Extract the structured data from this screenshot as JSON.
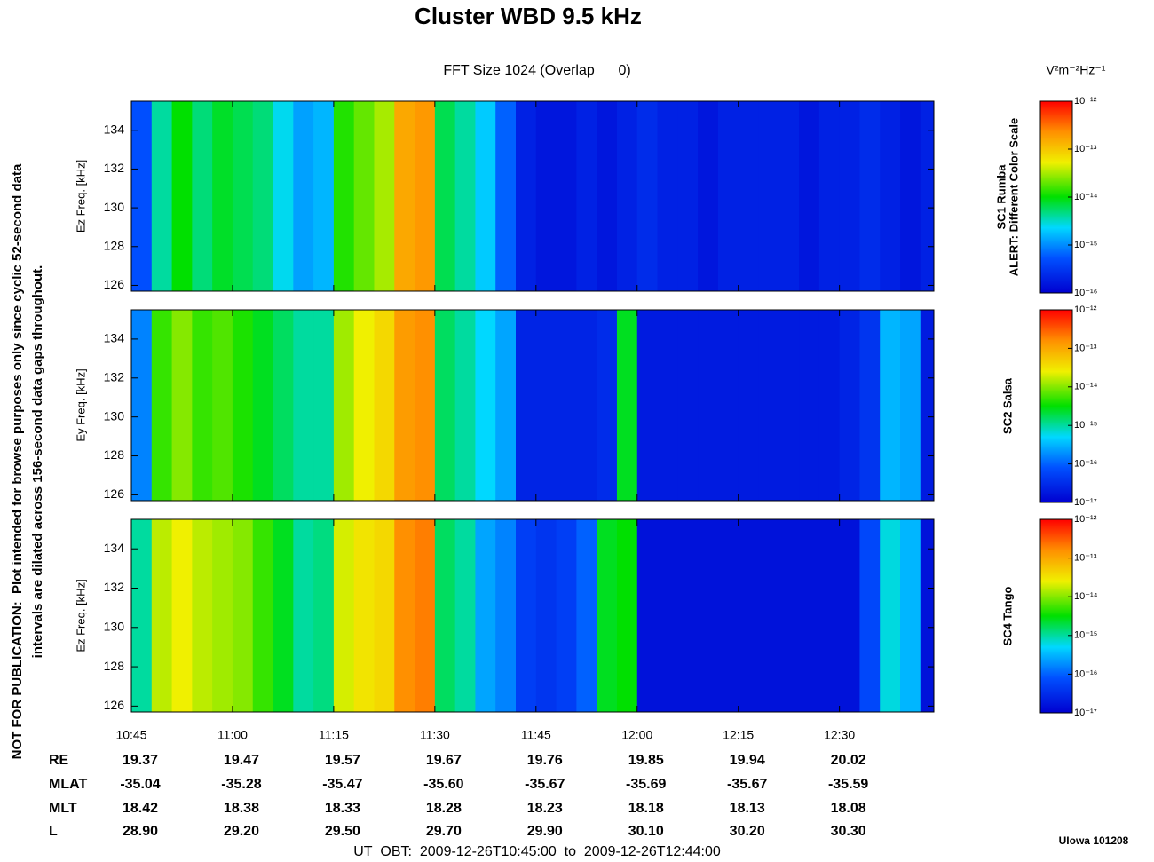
{
  "title": "Cluster WBD 9.5 kHz",
  "subtitle": "FFT Size 1024 (Overlap      0)",
  "side_note": [
    "NOT FOR PUBLICATION:  Plot intended for browse purposes only since cyclic 52-second data",
    "intervals are dilated across 156-second data gaps throughout."
  ],
  "colorbar_unit": "V²m⁻²Hz⁻¹",
  "chart_data": [
    {
      "type": "heatmap",
      "ylabel": "Ez Freq. [kHz]",
      "side_label": [
        "SC1 Rumba",
        "ALERT: Different Color Scale"
      ],
      "ylim": [
        125.7,
        135.5
      ],
      "yticks": [
        126,
        128,
        130,
        132,
        134
      ],
      "xlim": [
        "10:45",
        "12:44"
      ],
      "xticks": [
        "10:45",
        "11:00",
        "11:15",
        "11:30",
        "11:45",
        "12:00",
        "12:15",
        "12:30"
      ],
      "x": [
        "10:45",
        "10:48",
        "10:51",
        "10:54",
        "10:57",
        "11:00",
        "11:03",
        "11:06",
        "11:09",
        "11:12",
        "11:15",
        "11:18",
        "11:21",
        "11:24",
        "11:27",
        "11:30",
        "11:33",
        "11:36",
        "11:39",
        "11:42",
        "11:45",
        "11:48",
        "11:51",
        "11:54",
        "11:57",
        "12:00",
        "12:03",
        "12:06",
        "12:09",
        "12:12",
        "12:15",
        "12:18",
        "12:21",
        "12:24",
        "12:27",
        "12:30",
        "12:33",
        "12:36",
        "12:39",
        "12:42"
      ],
      "values": [
        -15.3,
        -14.4,
        -14.0,
        -14.3,
        -14.1,
        -14.2,
        -14.3,
        -14.6,
        -14.9,
        -14.8,
        -13.9,
        -13.7,
        -13.5,
        -12.8,
        -12.7,
        -14.2,
        -14.4,
        -14.7,
        -15.2,
        -15.7,
        -15.8,
        -15.8,
        -15.7,
        -15.8,
        -15.7,
        -15.6,
        -15.7,
        -15.7,
        -15.8,
        -15.7,
        -15.7,
        -15.7,
        -15.7,
        -15.8,
        -15.7,
        -15.7,
        -15.6,
        -15.7,
        -15.8,
        -15.7
      ],
      "colorbar": {
        "lim": [
          -16,
          -12
        ],
        "ticks": [
          {
            "value": -12,
            "label": "10⁻¹²"
          },
          {
            "value": -13,
            "label": "10⁻¹³"
          },
          {
            "value": -14,
            "label": "10⁻¹⁴"
          },
          {
            "value": -15,
            "label": "10⁻¹⁵"
          },
          {
            "value": -16,
            "label": "10⁻¹⁶"
          }
        ]
      }
    },
    {
      "type": "heatmap",
      "ylabel": "Ey Freq. [kHz]",
      "side_label": [
        "SC2 Salsa"
      ],
      "ylim": [
        125.7,
        135.5
      ],
      "yticks": [
        126,
        128,
        130,
        132,
        134
      ],
      "xlim": [
        "10:45",
        "12:44"
      ],
      "xticks": [
        "10:45",
        "11:00",
        "11:15",
        "11:30",
        "11:45",
        "12:00",
        "12:15",
        "12:30"
      ],
      "x": [
        "10:45",
        "10:48",
        "10:51",
        "10:54",
        "10:57",
        "11:00",
        "11:03",
        "11:06",
        "11:09",
        "11:12",
        "11:15",
        "11:18",
        "11:21",
        "11:24",
        "11:27",
        "11:30",
        "11:33",
        "11:36",
        "11:39",
        "11:42",
        "11:45",
        "11:48",
        "11:51",
        "11:54",
        "11:57",
        "12:00",
        "12:03",
        "12:06",
        "12:09",
        "12:12",
        "12:15",
        "12:18",
        "12:21",
        "12:24",
        "12:27",
        "12:30",
        "12:33",
        "12:36",
        "12:39",
        "12:42"
      ],
      "values": [
        -15.8,
        -14.3,
        -14.0,
        -14.3,
        -14.2,
        -14.4,
        -14.6,
        -14.8,
        -15.0,
        -15.0,
        -13.9,
        -13.6,
        -13.4,
        -12.9,
        -12.8,
        -14.8,
        -15.0,
        -15.3,
        -15.6,
        -16.6,
        -16.6,
        -16.6,
        -16.6,
        -16.5,
        -14.6,
        -16.7,
        -16.7,
        -16.7,
        -16.7,
        -16.7,
        -16.7,
        -16.7,
        -16.7,
        -16.7,
        -16.7,
        -16.6,
        -16.4,
        -15.5,
        -15.6,
        -16.7
      ],
      "colorbar": {
        "lim": [
          -17,
          -12
        ],
        "ticks": [
          {
            "value": -12,
            "label": "10⁻¹²"
          },
          {
            "value": -13,
            "label": "10⁻¹³"
          },
          {
            "value": -14,
            "label": "10⁻¹⁴"
          },
          {
            "value": -15,
            "label": "10⁻¹⁵"
          },
          {
            "value": -16,
            "label": "10⁻¹⁶"
          },
          {
            "value": -17,
            "label": "10⁻¹⁷"
          }
        ]
      }
    },
    {
      "type": "heatmap",
      "ylabel": "Ez Freq. [kHz]",
      "side_label": [
        "SC4 Tango"
      ],
      "ylim": [
        125.7,
        135.5
      ],
      "yticks": [
        126,
        128,
        130,
        132,
        134
      ],
      "xlim": [
        "10:45",
        "12:44"
      ],
      "xticks": [
        "10:45",
        "11:00",
        "11:15",
        "11:30",
        "11:45",
        "12:00",
        "12:15",
        "12:30"
      ],
      "x": [
        "10:45",
        "10:48",
        "10:51",
        "10:54",
        "10:57",
        "11:00",
        "11:03",
        "11:06",
        "11:09",
        "11:12",
        "11:15",
        "11:18",
        "11:21",
        "11:24",
        "11:27",
        "11:30",
        "11:33",
        "11:36",
        "11:39",
        "11:42",
        "11:45",
        "11:48",
        "11:51",
        "11:54",
        "11:57",
        "12:00",
        "12:03",
        "12:06",
        "12:09",
        "12:12",
        "12:15",
        "12:18",
        "12:21",
        "12:24",
        "12:27",
        "12:30",
        "12:33",
        "12:36",
        "12:39",
        "12:42"
      ],
      "values": [
        -15.0,
        -13.8,
        -13.6,
        -13.8,
        -13.9,
        -14.0,
        -14.3,
        -14.6,
        -15.0,
        -14.9,
        -13.7,
        -13.5,
        -13.4,
        -12.8,
        -12.7,
        -14.8,
        -15.0,
        -15.6,
        -15.8,
        -16.3,
        -16.4,
        -16.3,
        -16.0,
        -14.6,
        -14.5,
        -16.8,
        -16.8,
        -16.8,
        -16.8,
        -16.8,
        -16.8,
        -16.8,
        -16.8,
        -16.8,
        -16.8,
        -16.8,
        -16.2,
        -15.2,
        -15.5,
        -16.8
      ],
      "colorbar": {
        "lim": [
          -17,
          -12
        ],
        "ticks": [
          {
            "value": -12,
            "label": "10⁻¹²"
          },
          {
            "value": -13,
            "label": "10⁻¹³"
          },
          {
            "value": -14,
            "label": "10⁻¹⁴"
          },
          {
            "value": -15,
            "label": "10⁻¹⁵"
          },
          {
            "value": -16,
            "label": "10⁻¹⁶"
          },
          {
            "value": -17,
            "label": "10⁻¹⁷"
          }
        ]
      }
    }
  ],
  "ephemeris": {
    "rows": [
      {
        "label": "RE",
        "values": [
          "19.37",
          "19.47",
          "19.57",
          "19.67",
          "19.76",
          "19.85",
          "19.94",
          "20.02"
        ]
      },
      {
        "label": "MLAT",
        "values": [
          "-35.04",
          "-35.28",
          "-35.47",
          "-35.60",
          "-35.67",
          "-35.69",
          "-35.67",
          "-35.59"
        ]
      },
      {
        "label": "MLT",
        "values": [
          "18.42",
          "18.38",
          "18.33",
          "18.28",
          "18.23",
          "18.18",
          "18.13",
          "18.08"
        ]
      },
      {
        "label": "L",
        "values": [
          "28.90",
          "29.20",
          "29.50",
          "29.70",
          "29.90",
          "30.10",
          "30.20",
          "30.30"
        ]
      }
    ]
  },
  "time_range": "UT_OBT:  2009-12-26T10:45:00  to  2009-12-26T12:44:00",
  "credit": "UIowa 101208"
}
